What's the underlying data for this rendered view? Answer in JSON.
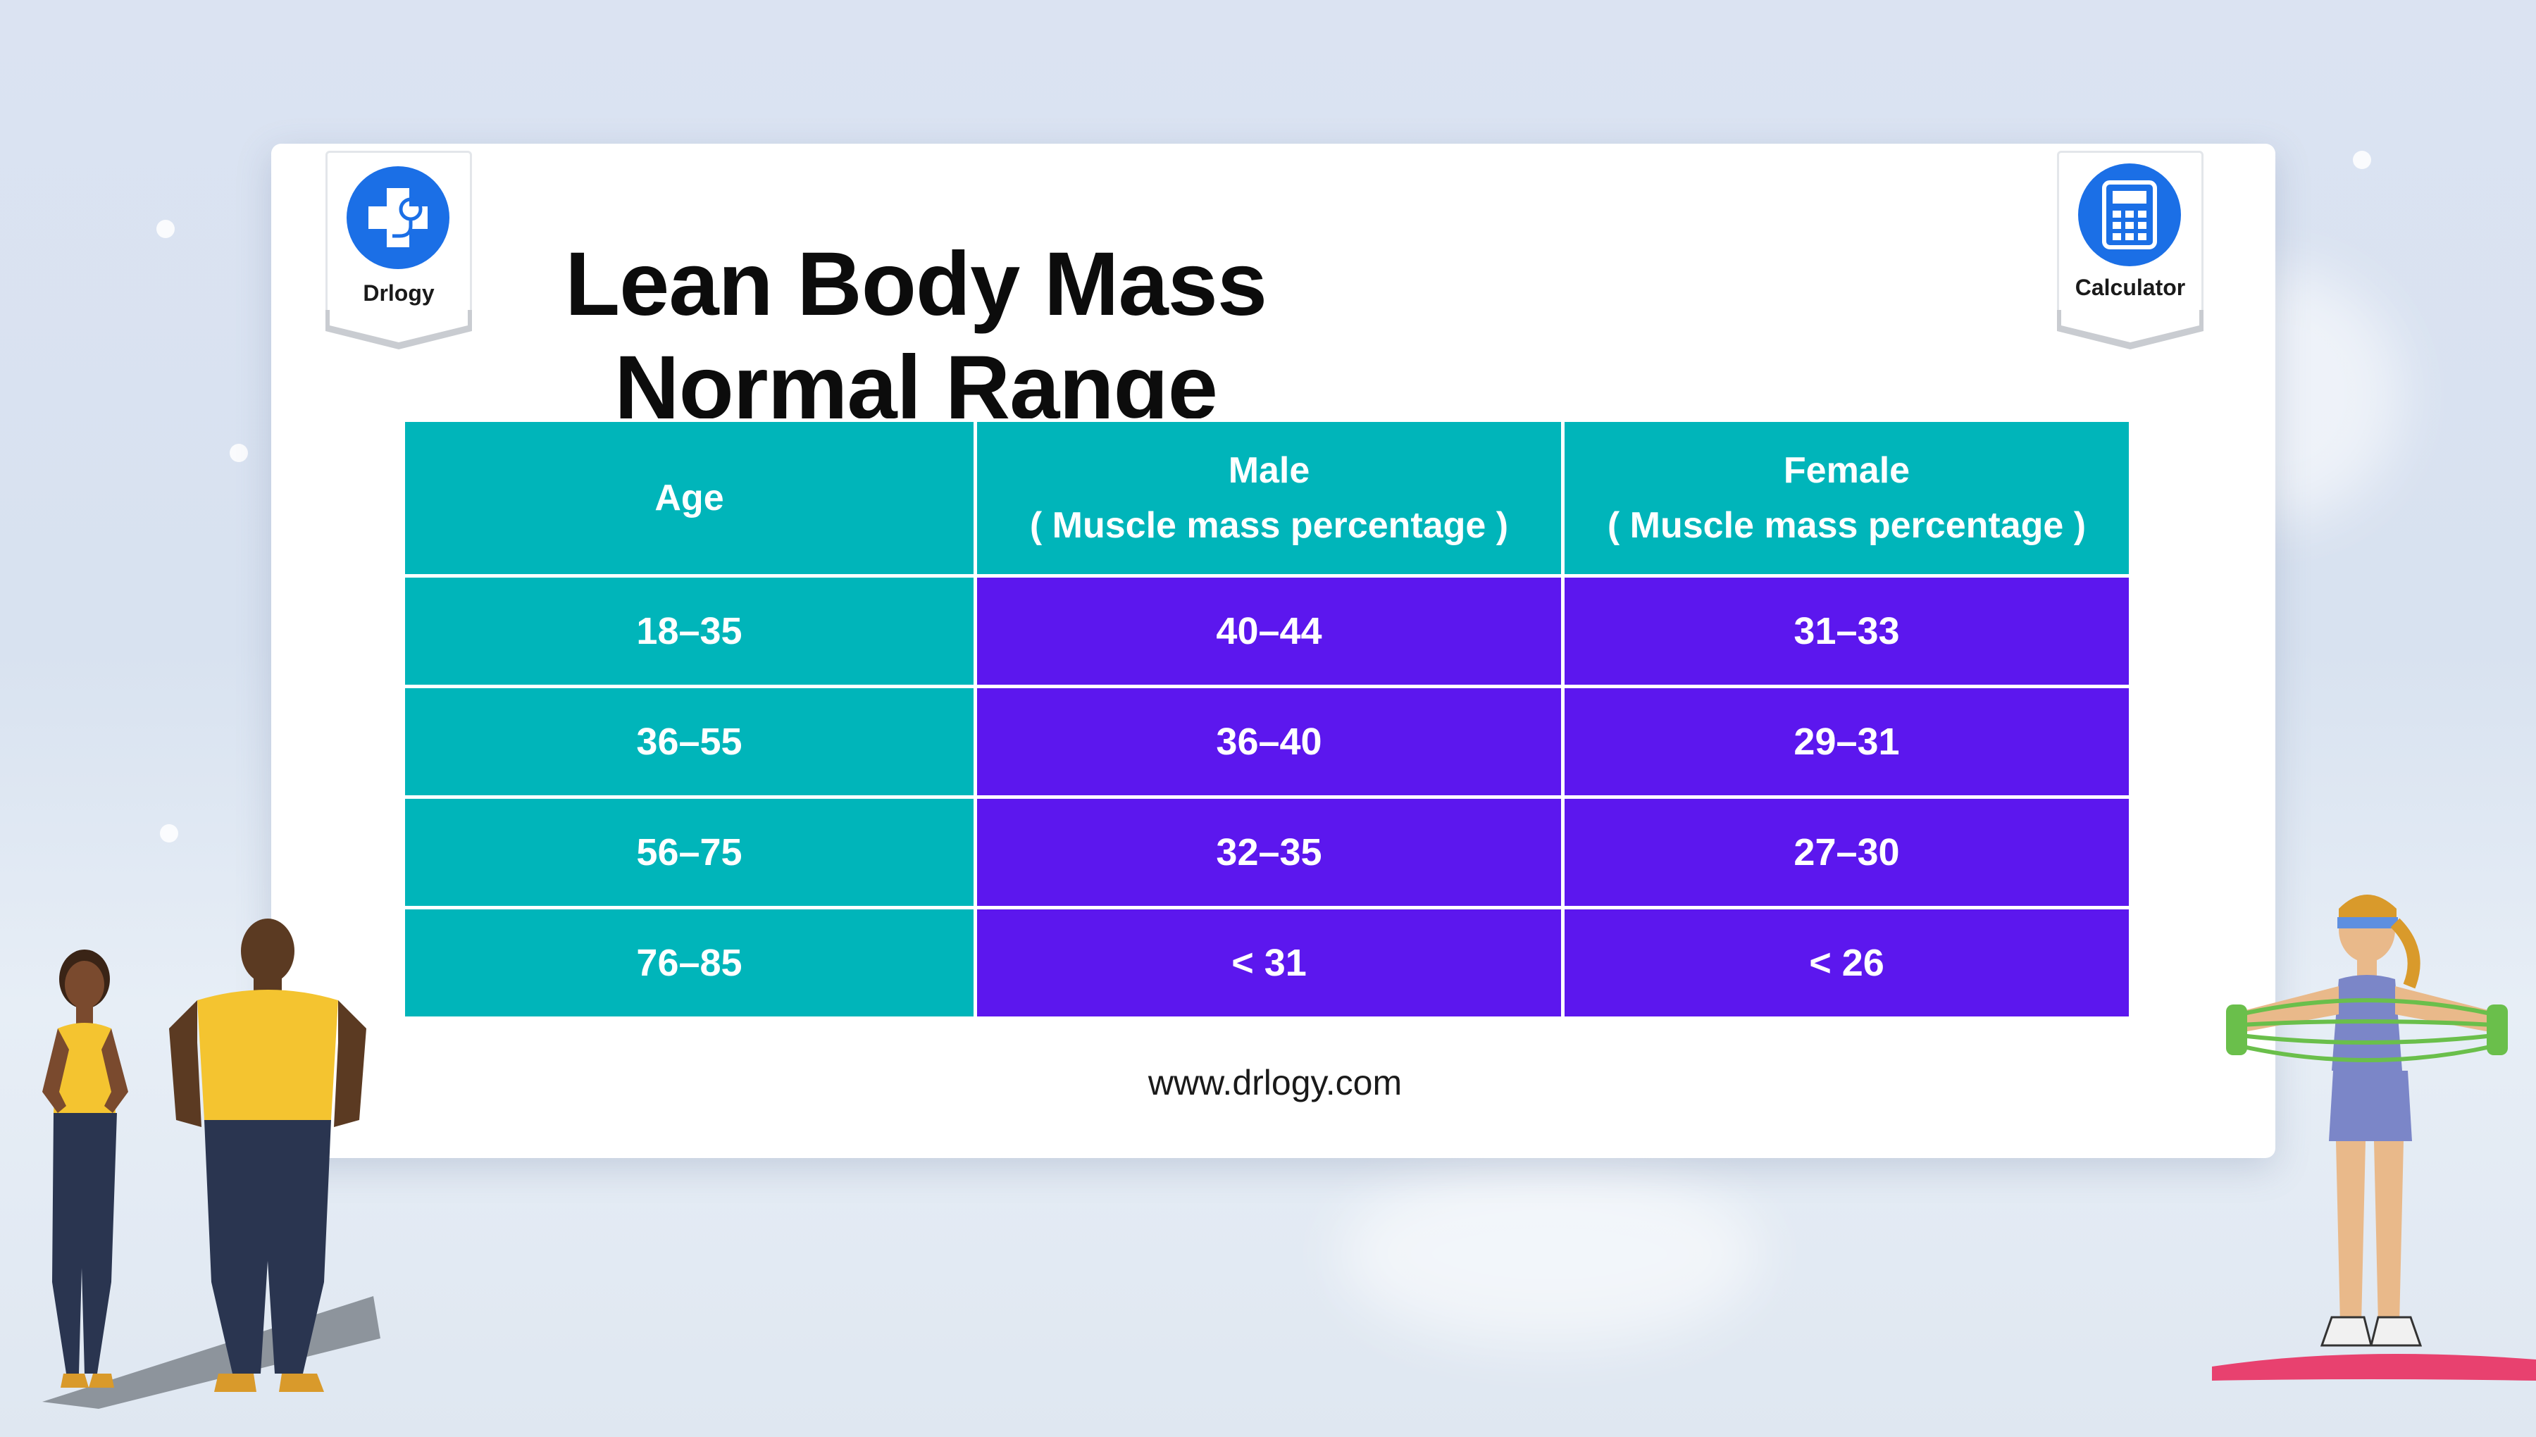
{
  "header": {
    "title": "Lean Body Mass Normal Range",
    "left_badge_label": "Drlogy",
    "right_badge_label": "Calculator",
    "left_badge_icon": "stethoscope-cross-icon",
    "right_badge_icon": "calculator-icon"
  },
  "table": {
    "headers": [
      {
        "line1": "Age",
        "line2": ""
      },
      {
        "line1": "Male",
        "line2": "( Muscle mass percentage )"
      },
      {
        "line1": "Female",
        "line2": "( Muscle mass percentage )"
      }
    ],
    "rows": [
      {
        "age": "18–35",
        "male": "40–44",
        "female": "31–33"
      },
      {
        "age": "36–55",
        "male": "36–40",
        "female": "29–31"
      },
      {
        "age": "56–75",
        "male": "32–35",
        "female": "27–30"
      },
      {
        "age": "76–85",
        "male": "< 31",
        "female": "< 26"
      }
    ]
  },
  "footer": {
    "website": "www.drlogy.com"
  },
  "colors": {
    "teal": "#00b5ba",
    "purple": "#5c17ee",
    "badge_blue": "#1b6fe6"
  }
}
